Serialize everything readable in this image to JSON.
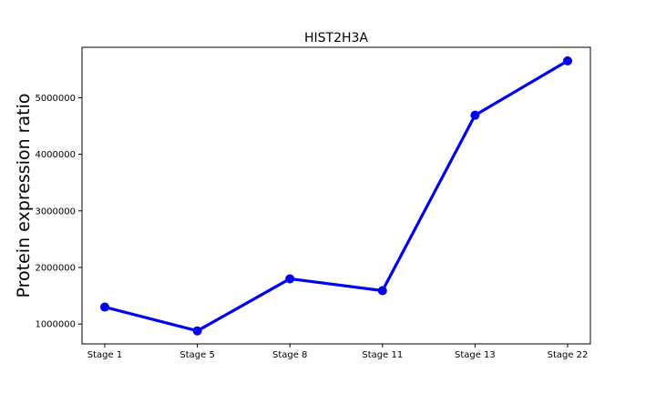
{
  "chart_data": {
    "type": "line",
    "title": "HIST2H3A",
    "xlabel": "",
    "ylabel": "Protein expression ratio",
    "categories": [
      "Stage 1",
      "Stage 5",
      "Stage 8",
      "Stage 11",
      "Stage 13",
      "Stage 22"
    ],
    "series": [
      {
        "values": [
          1300000,
          880000,
          1800000,
          1590000,
          4690000,
          5650000
        ]
      }
    ],
    "y_ticks": [
      1000000,
      2000000,
      3000000,
      4000000,
      5000000
    ],
    "y_tick_labels": [
      "1000000",
      "2000000",
      "3000000",
      "4000000",
      "5000000"
    ],
    "ylim": [
      650000,
      5890000
    ],
    "grid": false,
    "line_color": "#0000ee",
    "marker": "circle"
  }
}
